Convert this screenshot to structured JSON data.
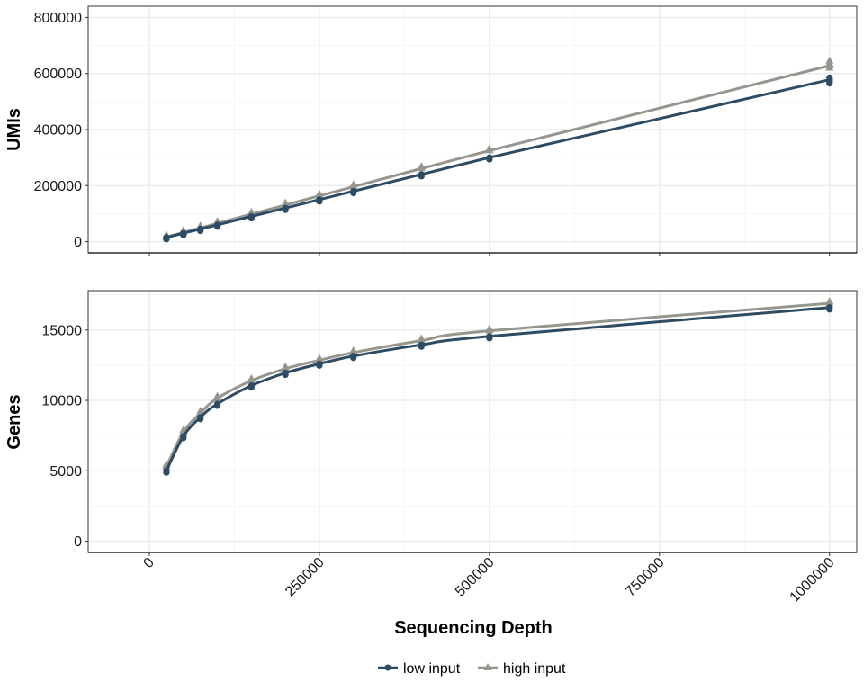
{
  "colors": {
    "low": "#2d4b63",
    "high": "#96968e",
    "grid_major": "#e8e8e8",
    "grid_minor": "#f4f4f4"
  },
  "legend": {
    "placement": "bottom",
    "items": [
      {
        "key": "low",
        "label": "low input",
        "marker": "circle"
      },
      {
        "key": "high",
        "label": "high input",
        "marker": "triangle"
      }
    ]
  },
  "chart_data": [
    {
      "type": "line",
      "panel": "top",
      "xlabel": "",
      "ylabel": "UMIs",
      "xlim": [
        -90000,
        1040000
      ],
      "ylim": [
        -40000,
        840000
      ],
      "y_ticks": [
        0,
        200000,
        400000,
        600000,
        800000
      ],
      "y_tick_labels": [
        "0",
        "200000",
        "400000",
        "600000",
        "800000"
      ],
      "grid": true,
      "x": [
        25000,
        50000,
        75000,
        100000,
        150000,
        200000,
        250000,
        300000,
        400000,
        500000,
        1000000
      ],
      "series": [
        {
          "key": "low",
          "name": "low input",
          "values": [
            15000,
            30000,
            45000,
            60000,
            90000,
            120000,
            150000,
            180000,
            240000,
            300000,
            578000
          ],
          "spread": [
            565000,
            572000,
            580000,
            585000
          ]
        },
        {
          "key": "high",
          "name": "high input",
          "values": [
            16500,
            33000,
            49000,
            65500,
            98000,
            131000,
            163500,
            196000,
            261000,
            325000,
            628000
          ],
          "spread": [
            620000,
            628000,
            635000,
            645000
          ]
        }
      ]
    },
    {
      "type": "line",
      "panel": "bottom",
      "xlabel": "Sequencing Depth",
      "ylabel": "Genes",
      "xlim": [
        -90000,
        1040000
      ],
      "ylim": [
        -800,
        17800
      ],
      "x_ticks": [
        0,
        250000,
        500000,
        750000,
        1000000
      ],
      "x_tick_labels": [
        "0",
        "250000",
        "500000",
        "750000",
        "1000000"
      ],
      "y_ticks": [
        0,
        5000,
        10000,
        15000
      ],
      "y_tick_labels": [
        "0",
        "5000",
        "10000",
        "15000"
      ],
      "grid": true,
      "x": [
        25000,
        50000,
        75000,
        100000,
        150000,
        200000,
        250000,
        300000,
        400000,
        500000,
        1000000
      ],
      "series": [
        {
          "key": "low",
          "name": "low input",
          "values": [
            5000,
            7450,
            8800,
            9750,
            11050,
            11950,
            12600,
            13150,
            13950,
            14550,
            16600
          ]
        },
        {
          "key": "high",
          "name": "high input",
          "values": [
            5300,
            7750,
            9100,
            10150,
            11400,
            12250,
            12850,
            13400,
            14250,
            14950,
            16900
          ]
        }
      ]
    }
  ]
}
